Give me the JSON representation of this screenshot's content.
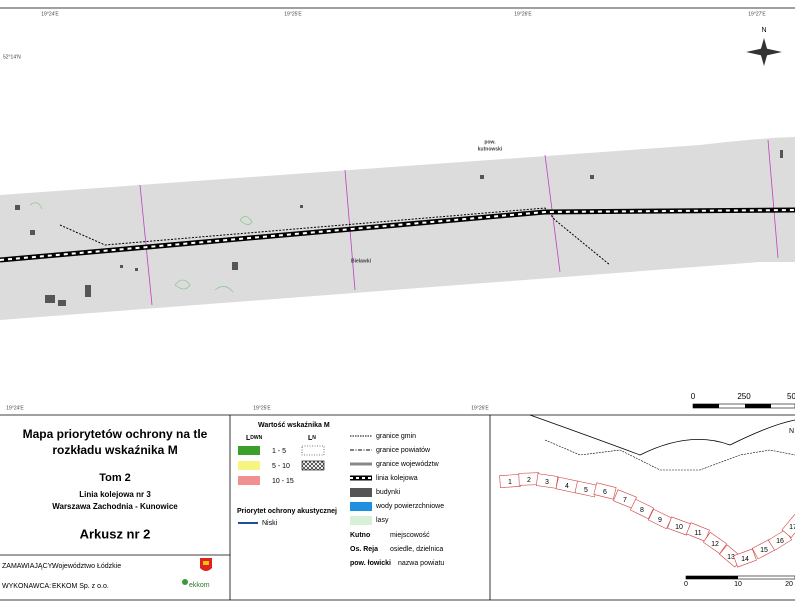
{
  "map": {
    "graticule_top": [
      "19°24'E",
      "19°25'E",
      "19°26'E",
      "19°27'E"
    ],
    "graticule_bottom": [
      "19°24'E",
      "19°25'E",
      "19°26'E"
    ],
    "graticule_left": [
      "52°14'N"
    ],
    "north": "N",
    "places": {
      "county_1": "pow.",
      "county_2": "kutnowski",
      "village": "Bielawki"
    },
    "scale": [
      "0",
      "250",
      "50"
    ]
  },
  "title_block": {
    "title_1": "Mapa priorytetów ochrony na tle",
    "title_2": "rozkładu wskaźnika M",
    "volume": "Tom 2",
    "line": "Linia kolejowa nr 3",
    "route": "Warszawa Zachodnia - Kunowice",
    "sheet": "Arkusz nr  2",
    "client_label": "ZAMAWIAJĄCY:",
    "client": "Województwo Łódzkie",
    "contractor_label": "WYKONAWCA:",
    "contractor": "EKKOM Sp. z o.o.",
    "logo": "ekkom"
  },
  "legend": {
    "title": "Wartość wskaźnika M",
    "col_ldwn": {
      "main": "L",
      "sub": "DWN"
    },
    "col_ln": {
      "main": "L",
      "sub": "N"
    },
    "classes": [
      "1 - 5",
      "5 - 10",
      "10 - 15"
    ],
    "priority_title": "Priorytet ochrony akustycznej",
    "priority": "Niski",
    "items": [
      "granice gmin",
      "granice powiatów",
      "granice województw",
      "linia kolejowa",
      "budynki",
      "wody powierzchniowe",
      "lasy"
    ],
    "place_examples": [
      {
        "sample": "Kutno",
        "label": "miejscowość"
      },
      {
        "sample": "Os. Reja",
        "label": "osiedle, dzielnica"
      },
      {
        "sample": "pow. łowicki",
        "label": "nazwa powiatu"
      }
    ]
  },
  "index_map": {
    "sheets": [
      "1",
      "2",
      "3",
      "4",
      "5",
      "6",
      "7",
      "8",
      "9",
      "10",
      "11",
      "12",
      "13",
      "14",
      "15",
      "16",
      "17"
    ],
    "scale": [
      "0",
      "10",
      "20"
    ],
    "north": "N"
  }
}
